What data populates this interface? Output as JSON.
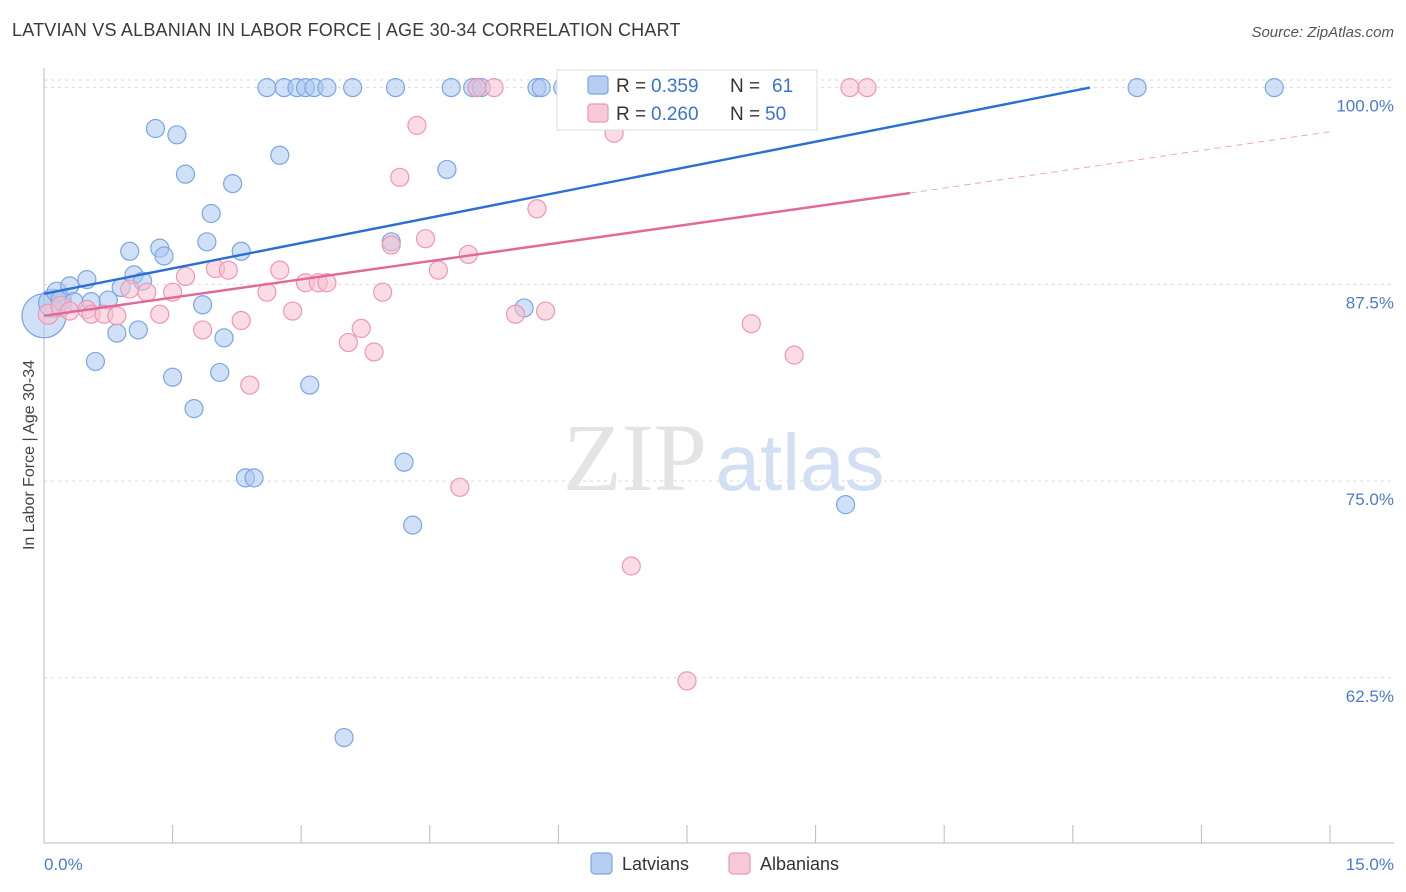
{
  "title": "LATVIAN VS ALBANIAN IN LABOR FORCE | AGE 30-34 CORRELATION CHART",
  "source": "Source: ZipAtlas.com",
  "watermark": {
    "zip": "ZIP",
    "atlas": "atlas"
  },
  "colors": {
    "latvian_fill": "#a9c6f0",
    "latvian_stroke": "#7ba6e3",
    "latvian_line": "#2a6fd1",
    "albanian_fill": "#f7bfd0",
    "albanian_stroke": "#ee97b3",
    "albanian_line": "#e2679a",
    "axis_label": "#4a7bd0",
    "grid": "#d9d9d9"
  },
  "legend": {
    "rows": [
      {
        "r_label": "R =",
        "r_value": "0.359",
        "n_label": "N =",
        "n_value": "61"
      },
      {
        "r_label": "R =",
        "r_value": "0.260",
        "n_label": "N =",
        "n_value": "50"
      }
    ]
  },
  "bottom_legend": [
    "Latvians",
    "Albanians"
  ],
  "chart_data": {
    "type": "scatter",
    "title": "LATVIAN VS ALBANIAN IN LABOR FORCE | AGE 30-34 CORRELATION CHART",
    "xlabel": "",
    "ylabel": "In Labor Force | Age 30-34",
    "xlim": [
      0,
      15
    ],
    "ylim": [
      52,
      101.5
    ],
    "x_tick_labels": [
      "0.0%",
      "15.0%"
    ],
    "y_ticks": [
      62.5,
      75.0,
      87.5,
      100.0
    ],
    "y_tick_labels": [
      "62.5%",
      "75.0%",
      "87.5%",
      "100.0%"
    ],
    "grid": true,
    "legend_position": "top-center",
    "series": [
      {
        "name": "Latvians",
        "R": 0.359,
        "N": 61,
        "trend": {
          "x0": 0.0,
          "y0": 86.9,
          "x1": 12.2,
          "y1": 100.0,
          "dashed_to": null
        },
        "points": [
          [
            0.0,
            85.5,
            22
          ],
          [
            0.1,
            86.3,
            14
          ],
          [
            0.15,
            87.0,
            10
          ],
          [
            0.2,
            86.5,
            10
          ],
          [
            0.3,
            87.4,
            9
          ],
          [
            0.35,
            86.4,
            9
          ],
          [
            0.5,
            87.8,
            9
          ],
          [
            0.55,
            86.4,
            9
          ],
          [
            0.6,
            82.6,
            9
          ],
          [
            0.75,
            86.5,
            9
          ],
          [
            0.85,
            84.4,
            9
          ],
          [
            0.9,
            87.3,
            9
          ],
          [
            1.0,
            89.6,
            9
          ],
          [
            1.05,
            88.1,
            9
          ],
          [
            1.15,
            87.7,
            9
          ],
          [
            1.1,
            84.6,
            9
          ],
          [
            1.3,
            97.4,
            9
          ],
          [
            1.35,
            89.8,
            9
          ],
          [
            1.4,
            89.3,
            9
          ],
          [
            1.5,
            81.6,
            9
          ],
          [
            1.55,
            97.0,
            9
          ],
          [
            1.65,
            94.5,
            9
          ],
          [
            1.75,
            79.6,
            9
          ],
          [
            1.85,
            86.2,
            9
          ],
          [
            1.9,
            90.2,
            9
          ],
          [
            1.95,
            92.0,
            9
          ],
          [
            2.05,
            81.9,
            9
          ],
          [
            2.1,
            84.1,
            9
          ],
          [
            2.2,
            93.9,
            9
          ],
          [
            2.3,
            89.6,
            9
          ],
          [
            2.35,
            75.2,
            9
          ],
          [
            2.45,
            75.2,
            9
          ],
          [
            2.6,
            100.0,
            9
          ],
          [
            2.75,
            95.7,
            9
          ],
          [
            2.8,
            100.0,
            9
          ],
          [
            2.95,
            100.0,
            9
          ],
          [
            3.05,
            100.0,
            9
          ],
          [
            3.1,
            81.1,
            9
          ],
          [
            3.15,
            100.0,
            9
          ],
          [
            3.3,
            100.0,
            9
          ],
          [
            3.5,
            58.7,
            9
          ],
          [
            3.6,
            100.0,
            9
          ],
          [
            4.05,
            90.2,
            9
          ],
          [
            4.1,
            100.0,
            9
          ],
          [
            4.2,
            76.2,
            9
          ],
          [
            4.3,
            72.2,
            9
          ],
          [
            4.7,
            94.8,
            9
          ],
          [
            4.75,
            100.0,
            9
          ],
          [
            5.0,
            100.0,
            9
          ],
          [
            5.05,
            100.0,
            9
          ],
          [
            5.1,
            100.0,
            9
          ],
          [
            5.6,
            86.0,
            9
          ],
          [
            5.75,
            100.0,
            9
          ],
          [
            5.8,
            100.0,
            9
          ],
          [
            6.05,
            100.0,
            9
          ],
          [
            6.4,
            100.0,
            9
          ],
          [
            7.45,
            100.0,
            9
          ],
          [
            8.2,
            100.0,
            9
          ],
          [
            9.35,
            73.5,
            9
          ],
          [
            12.75,
            100.0,
            9
          ],
          [
            14.35,
            100.0,
            9
          ]
        ]
      },
      {
        "name": "Albanians",
        "R": 0.26,
        "N": 50,
        "trend": {
          "x0": 0.0,
          "y0": 85.5,
          "x1": 10.1,
          "y1": 93.3,
          "dashed_to": [
            15.0,
            97.2
          ]
        },
        "points": [
          [
            0.05,
            85.6,
            10
          ],
          [
            0.2,
            86.1,
            10
          ],
          [
            0.3,
            85.8,
            9
          ],
          [
            0.5,
            85.9,
            9
          ],
          [
            0.55,
            85.6,
            9
          ],
          [
            0.7,
            85.6,
            9
          ],
          [
            0.85,
            85.5,
            9
          ],
          [
            1.0,
            87.2,
            9
          ],
          [
            1.2,
            87.0,
            9
          ],
          [
            1.35,
            85.6,
            9
          ],
          [
            1.5,
            87.0,
            9
          ],
          [
            1.65,
            88.0,
            9
          ],
          [
            1.85,
            84.6,
            9
          ],
          [
            2.0,
            88.5,
            9
          ],
          [
            2.15,
            88.4,
            9
          ],
          [
            2.3,
            85.2,
            9
          ],
          [
            2.4,
            81.1,
            9
          ],
          [
            2.6,
            87.0,
            9
          ],
          [
            2.75,
            88.4,
            9
          ],
          [
            2.9,
            85.8,
            9
          ],
          [
            3.05,
            87.6,
            9
          ],
          [
            3.2,
            87.6,
            9
          ],
          [
            3.3,
            87.6,
            9
          ],
          [
            3.55,
            83.8,
            9
          ],
          [
            3.7,
            84.7,
            9
          ],
          [
            3.85,
            83.2,
            9
          ],
          [
            3.95,
            87.0,
            9
          ],
          [
            4.05,
            90.0,
            9
          ],
          [
            4.15,
            94.3,
            9
          ],
          [
            4.35,
            97.6,
            9
          ],
          [
            4.45,
            90.4,
            9
          ],
          [
            4.6,
            88.4,
            9
          ],
          [
            4.85,
            74.6,
            9
          ],
          [
            4.95,
            89.4,
            9
          ],
          [
            5.05,
            100.0,
            9
          ],
          [
            5.25,
            100.0,
            9
          ],
          [
            5.5,
            85.6,
            9
          ],
          [
            5.75,
            92.3,
            9
          ],
          [
            5.85,
            85.8,
            9
          ],
          [
            6.1,
            100.0,
            9
          ],
          [
            6.35,
            98.2,
            9
          ],
          [
            6.5,
            100.0,
            9
          ],
          [
            6.65,
            97.1,
            9
          ],
          [
            6.85,
            69.6,
            9
          ],
          [
            7.5,
            62.3,
            9
          ],
          [
            8.0,
            100.0,
            9
          ],
          [
            8.25,
            85.0,
            9
          ],
          [
            8.75,
            83.0,
            9
          ],
          [
            9.4,
            100.0,
            9
          ],
          [
            9.6,
            100.0,
            9
          ]
        ]
      }
    ]
  }
}
